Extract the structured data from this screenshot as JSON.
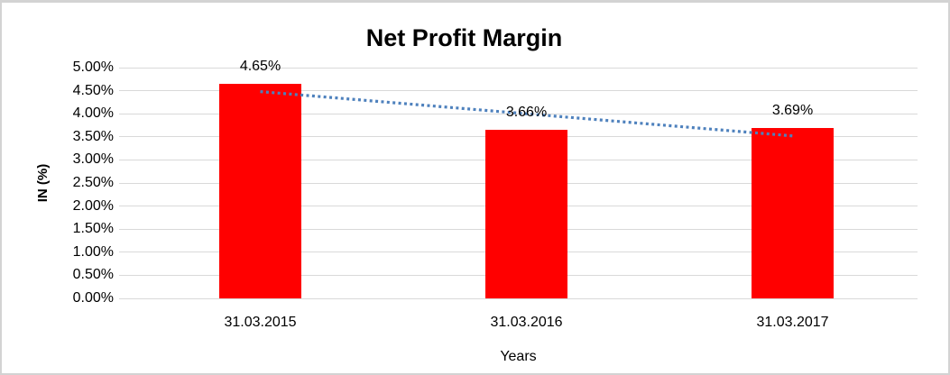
{
  "window": {
    "background_color": "#ffffff",
    "border_color": "#d3d3d3"
  },
  "chart_data": {
    "type": "bar",
    "title": "Net Profit Margin",
    "xlabel": "Years",
    "ylabel": "IN (%)",
    "categories": [
      "31.03.2015",
      "31.03.2016",
      "31.03.2017"
    ],
    "values": [
      4.65,
      3.66,
      3.69
    ],
    "value_labels": [
      "4.65%",
      "3.66%",
      "3.69%"
    ],
    "ylim": [
      0,
      5
    ],
    "ytick_step": 0.5,
    "ytick_labels": [
      "0.00%",
      "0.50%",
      "1.00%",
      "1.50%",
      "2.00%",
      "2.50%",
      "3.00%",
      "3.50%",
      "4.00%",
      "4.50%",
      "5.00%"
    ],
    "grid": true,
    "legend_position": "none",
    "bar_color": "#ff0000",
    "gridline_color": "#d9d9d9",
    "trendline": {
      "type": "linear",
      "style": "dotted",
      "color": "#4e81bd",
      "fitted_endpoints": [
        4.48,
        3.52
      ]
    }
  }
}
